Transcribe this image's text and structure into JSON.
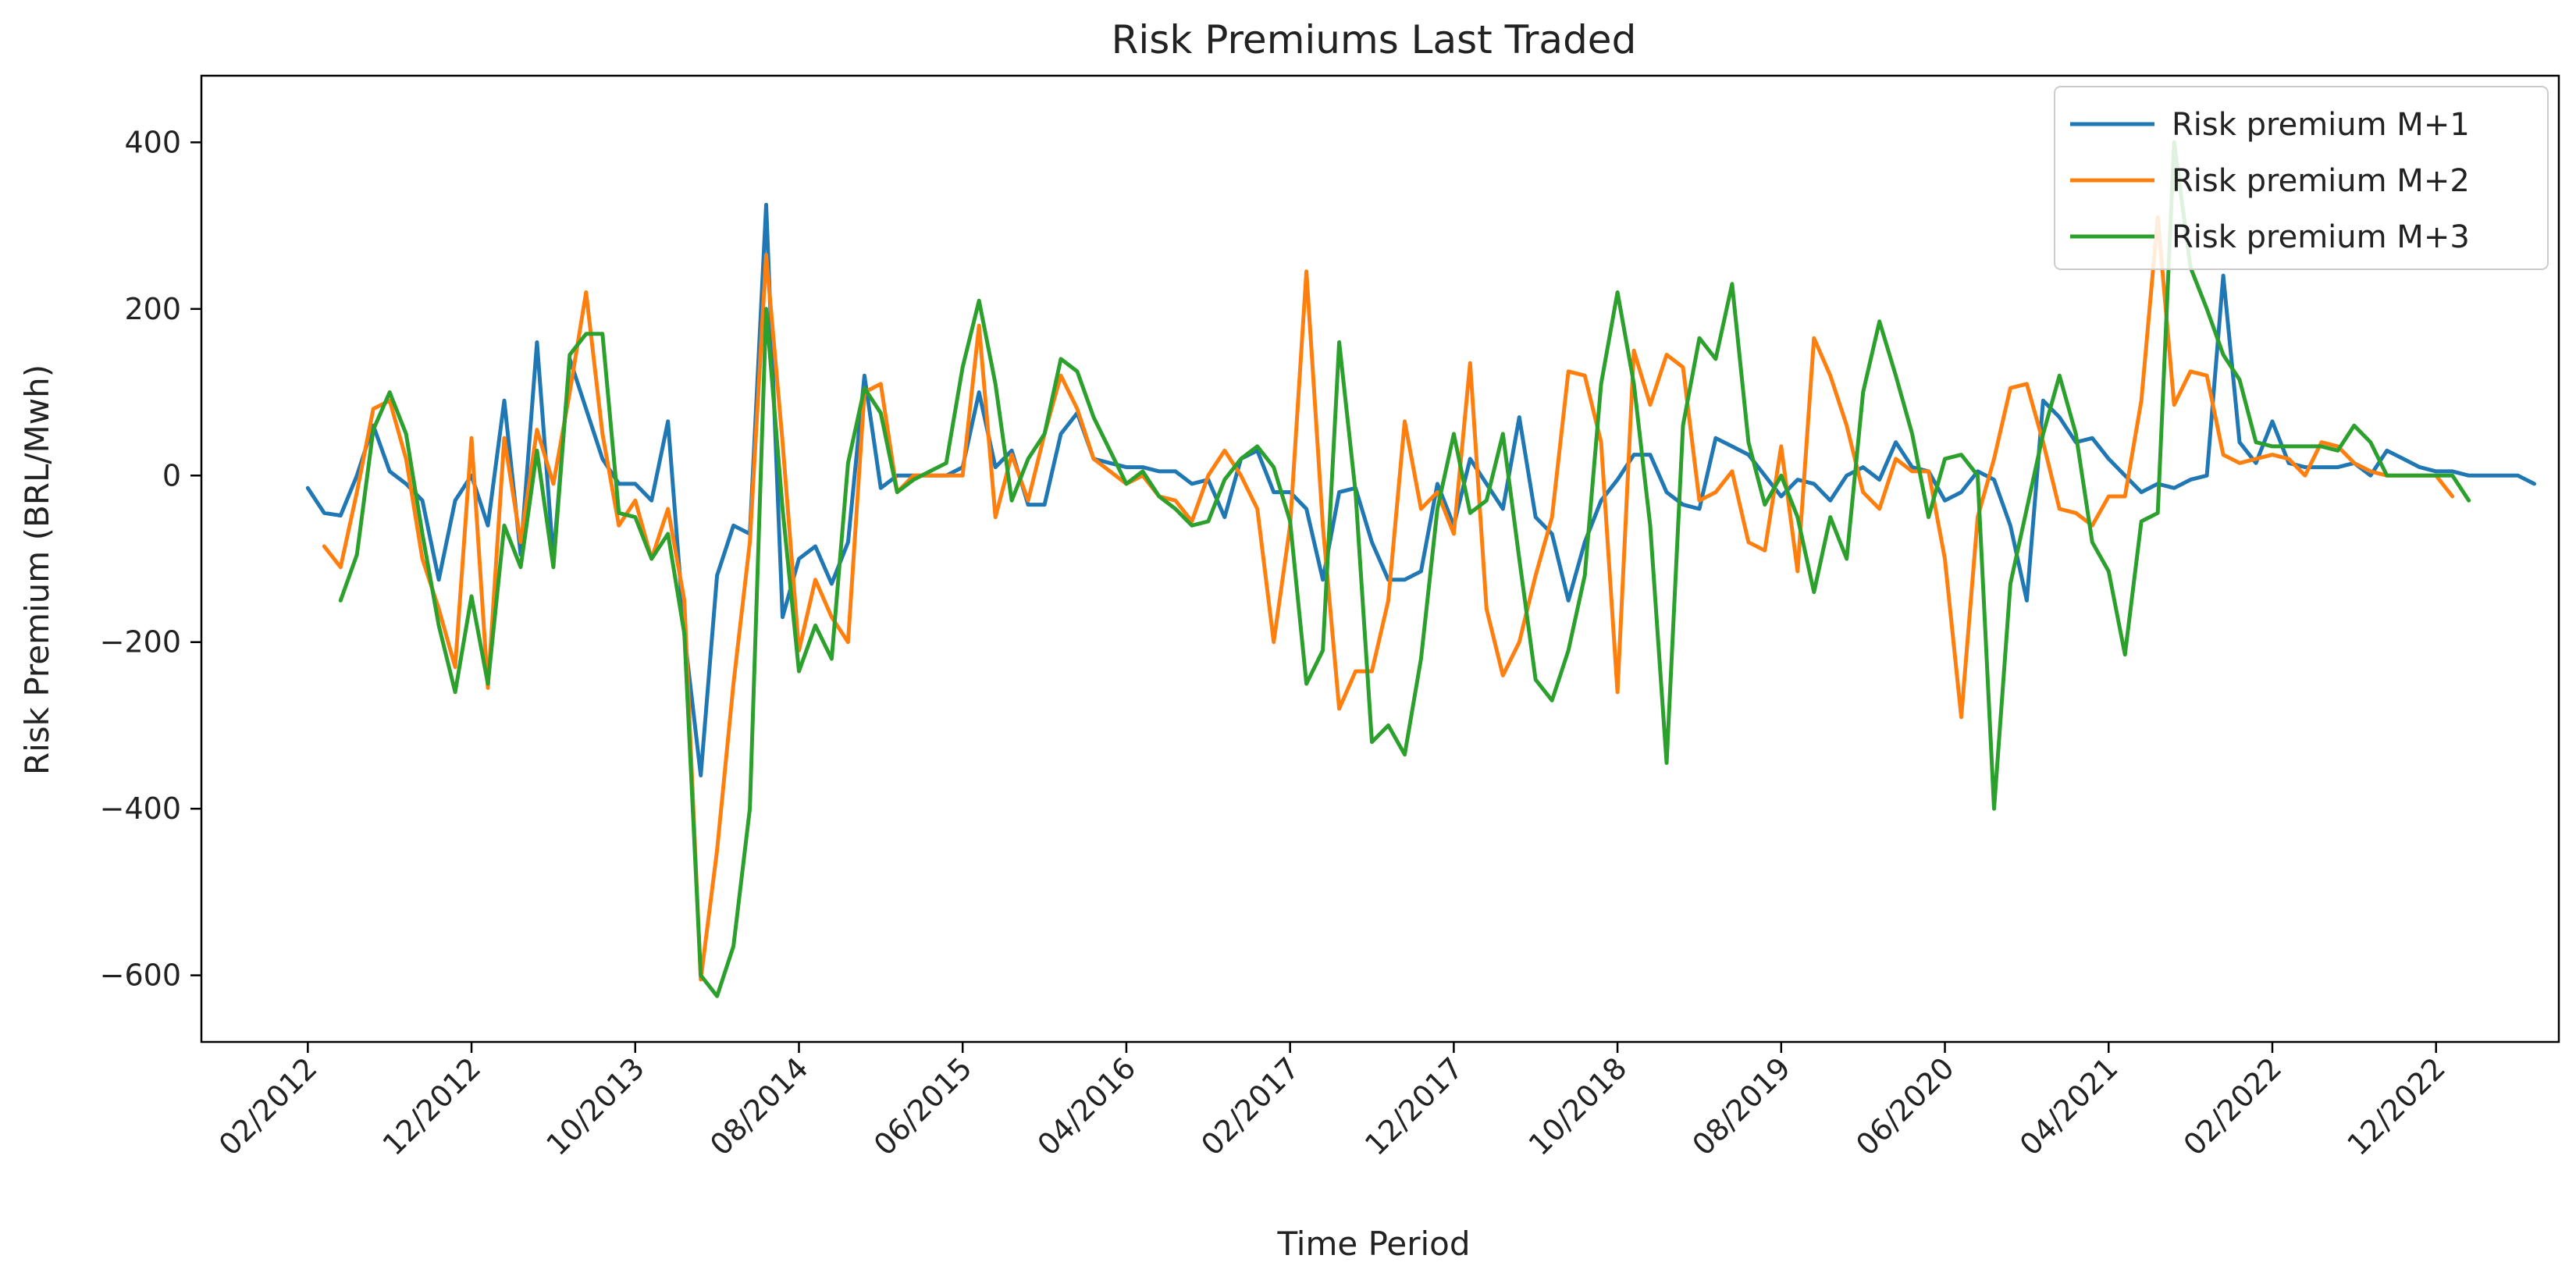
{
  "chart_data": {
    "type": "line",
    "title": "Risk Premiums Last Traded",
    "xlabel": "Time Period",
    "ylabel": "Risk Premium (BRL/Mwh)",
    "ylim": [
      -680,
      480
    ],
    "yticks": [
      -600,
      -400,
      -200,
      0,
      200,
      400
    ],
    "x_start": "01/2012",
    "x_ticks": [
      {
        "label": "02/2012",
        "index": 1
      },
      {
        "label": "12/2012",
        "index": 11
      },
      {
        "label": "10/2013",
        "index": 21
      },
      {
        "label": "08/2014",
        "index": 31
      },
      {
        "label": "06/2015",
        "index": 41
      },
      {
        "label": "04/2016",
        "index": 51
      },
      {
        "label": "02/2017",
        "index": 61
      },
      {
        "label": "12/2017",
        "index": 71
      },
      {
        "label": "10/2018",
        "index": 81
      },
      {
        "label": "08/2019",
        "index": 91
      },
      {
        "label": "06/2020",
        "index": 101
      },
      {
        "label": "04/2021",
        "index": 111
      },
      {
        "label": "02/2022",
        "index": 121
      },
      {
        "label": "12/2022",
        "index": 131
      }
    ],
    "x_range": [
      -5.5,
      138.5
    ],
    "legend_position": "top-right",
    "series": [
      {
        "name": "Risk premium M+1",
        "color": "#1f77b4",
        "start_index": 1,
        "values": [
          -15,
          -45,
          -48,
          0,
          60,
          5,
          -10,
          -30,
          -125,
          -30,
          0,
          -60,
          90,
          -95,
          160,
          -100,
          140,
          80,
          20,
          -10,
          -10,
          -30,
          65,
          -190,
          -360,
          -120,
          -60,
          -70,
          325,
          -170,
          -100,
          -85,
          -130,
          -80,
          120,
          -15,
          0,
          0,
          0,
          0,
          10,
          100,
          10,
          30,
          -35,
          -35,
          50,
          75,
          20,
          15,
          10,
          10,
          5,
          5,
          -10,
          -5,
          -50,
          20,
          30,
          -20,
          -20,
          -40,
          -125,
          -20,
          -15,
          -80,
          -125,
          -125,
          -115,
          -10,
          -60,
          20,
          -10,
          -40,
          70,
          -50,
          -70,
          -150,
          -80,
          -30,
          -5,
          25,
          25,
          -20,
          -35,
          -40,
          45,
          35,
          25,
          0,
          -25,
          -5,
          -10,
          -30,
          0,
          10,
          -5,
          40,
          10,
          5,
          -30,
          -20,
          5,
          -5,
          -60,
          -150,
          90,
          70,
          40,
          45,
          20,
          0,
          -20,
          -10,
          -15,
          -5,
          0,
          240,
          40,
          15,
          65,
          15,
          10,
          10,
          10,
          15,
          0,
          30,
          20,
          10,
          5,
          5,
          0,
          0,
          0,
          0,
          -10
        ]
      },
      {
        "name": "Risk premium M+2",
        "color": "#ff7f0e",
        "start_index": 2,
        "values": [
          -85,
          -110,
          -20,
          80,
          90,
          20,
          -100,
          -160,
          -230,
          45,
          -255,
          45,
          -80,
          55,
          -10,
          100,
          220,
          50,
          -60,
          -30,
          -100,
          -40,
          -150,
          -605,
          -450,
          -250,
          -80,
          265,
          40,
          -210,
          -125,
          -170,
          -200,
          100,
          110,
          -20,
          0,
          0,
          0,
          0,
          180,
          -50,
          25,
          -30,
          50,
          120,
          80,
          20,
          5,
          -10,
          0,
          -25,
          -30,
          -55,
          0,
          30,
          0,
          -40,
          -200,
          -60,
          245,
          -60,
          -280,
          -235,
          -235,
          -150,
          65,
          -40,
          -20,
          -70,
          135,
          -160,
          -240,
          -200,
          -120,
          -50,
          125,
          120,
          40,
          -260,
          150,
          85,
          145,
          130,
          -30,
          -20,
          5,
          -80,
          -90,
          35,
          -115,
          165,
          120,
          60,
          -20,
          -40,
          20,
          5,
          5,
          -100,
          -290,
          -50,
          20,
          105,
          110,
          40,
          -40,
          -45,
          -60,
          -25,
          -25,
          90,
          310,
          85,
          125,
          120,
          25,
          15,
          20,
          25,
          20,
          0,
          40,
          35,
          15,
          5,
          0,
          0,
          0,
          0,
          -25
        ]
      },
      {
        "name": "Risk premium M+3",
        "color": "#2ca02c",
        "start_index": 3,
        "values": [
          -150,
          -95,
          55,
          100,
          50,
          -70,
          -180,
          -260,
          -145,
          -250,
          -60,
          -110,
          30,
          -110,
          145,
          170,
          170,
          -45,
          -50,
          -100,
          -70,
          -190,
          -600,
          -625,
          -565,
          -400,
          200,
          -40,
          -235,
          -180,
          -220,
          15,
          105,
          75,
          -20,
          -5,
          5,
          15,
          130,
          210,
          110,
          -30,
          20,
          50,
          140,
          125,
          70,
          30,
          -10,
          5,
          -25,
          -40,
          -60,
          -55,
          -5,
          20,
          35,
          10,
          -55,
          -250,
          -210,
          160,
          -20,
          -320,
          -300,
          -335,
          -220,
          -40,
          50,
          -45,
          -30,
          50,
          -100,
          -245,
          -270,
          -210,
          -120,
          110,
          220,
          110,
          -60,
          -345,
          60,
          165,
          140,
          230,
          40,
          -35,
          0,
          -50,
          -140,
          -50,
          -100,
          100,
          185,
          120,
          50,
          -50,
          20,
          25,
          0,
          -400,
          -130,
          -40,
          50,
          120,
          50,
          -80,
          -115,
          -215,
          -55,
          -45,
          400,
          250,
          200,
          145,
          115,
          40,
          35,
          35,
          35,
          35,
          30,
          60,
          40,
          0,
          0,
          0,
          0,
          0,
          -30
        ]
      }
    ]
  }
}
